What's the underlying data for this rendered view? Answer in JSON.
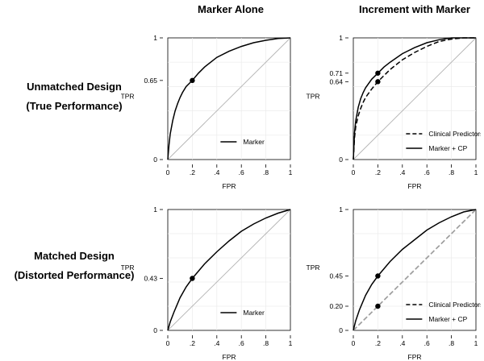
{
  "column_titles": [
    "Marker Alone",
    "Increment with Marker"
  ],
  "row_titles": [
    {
      "line1": "Unmatched Design",
      "line2": "(True Performance)"
    },
    {
      "line1": "Matched Design",
      "line2": "(Distorted Performance)"
    }
  ],
  "colors": {
    "curve": "#000000",
    "diagonal": "#b4b4b4",
    "grid": "#ebebeb",
    "dashed_diag": "#a0a0a0"
  },
  "chart_data": [
    {
      "type": "line",
      "title": "",
      "xlabel": "FPR",
      "ylabel": "TPR",
      "xlim": [
        0,
        1
      ],
      "ylim": [
        0,
        1
      ],
      "x_ticks": [
        "0",
        ".2",
        ".4",
        ".6",
        ".8",
        "1"
      ],
      "y_ticks": [
        {
          "value": 0,
          "label": "0"
        },
        {
          "value": 0.65,
          "label": "0.65"
        },
        {
          "value": 1,
          "label": "1"
        }
      ],
      "series": [
        {
          "name": "Marker",
          "style": "solid",
          "x": [
            0,
            0.01,
            0.02,
            0.04,
            0.06,
            0.08,
            0.1,
            0.12,
            0.15,
            0.2,
            0.25,
            0.3,
            0.4,
            0.5,
            0.6,
            0.7,
            0.8,
            0.9,
            1.0
          ],
          "y": [
            0,
            0.12,
            0.21,
            0.32,
            0.4,
            0.46,
            0.51,
            0.55,
            0.6,
            0.65,
            0.71,
            0.76,
            0.84,
            0.89,
            0.93,
            0.96,
            0.98,
            0.995,
            1.0
          ]
        }
      ],
      "points": [
        {
          "x": 0.2,
          "y": 0.65
        }
      ],
      "legend": {
        "placement": "bottom-right",
        "items": [
          {
            "label": "Marker",
            "style": "solid"
          }
        ]
      }
    },
    {
      "type": "line",
      "title": "",
      "xlabel": "FPR",
      "ylabel": "TPR",
      "xlim": [
        0,
        1
      ],
      "ylim": [
        0,
        1
      ],
      "x_ticks": [
        "0",
        ".2",
        ".4",
        ".6",
        ".8",
        "1"
      ],
      "y_ticks": [
        {
          "value": 0,
          "label": "0"
        },
        {
          "value": 0.64,
          "label": "0.64"
        },
        {
          "value": 0.71,
          "label": "0.71"
        },
        {
          "value": 1,
          "label": "1"
        }
      ],
      "series": [
        {
          "name": "Clinical Predictors",
          "style": "dashed",
          "x": [
            0,
            0.01,
            0.02,
            0.04,
            0.06,
            0.08,
            0.1,
            0.15,
            0.2,
            0.25,
            0.3,
            0.4,
            0.5,
            0.6,
            0.7,
            0.8,
            0.9,
            1.0
          ],
          "y": [
            0,
            0.18,
            0.27,
            0.36,
            0.42,
            0.47,
            0.51,
            0.58,
            0.64,
            0.69,
            0.74,
            0.82,
            0.88,
            0.93,
            0.97,
            0.99,
            1.0,
            1.0
          ]
        },
        {
          "name": "Marker + CP",
          "style": "solid",
          "x": [
            0,
            0.01,
            0.02,
            0.04,
            0.06,
            0.08,
            0.1,
            0.15,
            0.2,
            0.25,
            0.3,
            0.4,
            0.5,
            0.6,
            0.7,
            0.8,
            0.9,
            1.0
          ],
          "y": [
            0,
            0.22,
            0.32,
            0.43,
            0.5,
            0.55,
            0.59,
            0.66,
            0.71,
            0.76,
            0.8,
            0.87,
            0.92,
            0.96,
            0.985,
            1.0,
            1.0,
            1.0
          ]
        }
      ],
      "points": [
        {
          "x": 0.2,
          "y": 0.71
        },
        {
          "x": 0.2,
          "y": 0.64
        }
      ],
      "legend": {
        "placement": "bottom-right",
        "items": [
          {
            "label": "Clinical Predictors",
            "style": "dashed"
          },
          {
            "label": "Marker + CP",
            "style": "solid"
          }
        ]
      }
    },
    {
      "type": "line",
      "title": "",
      "xlabel": "FPR",
      "ylabel": "TPR",
      "xlim": [
        0,
        1
      ],
      "ylim": [
        0,
        1
      ],
      "x_ticks": [
        "0",
        ".2",
        ".4",
        ".6",
        ".8",
        "1"
      ],
      "y_ticks": [
        {
          "value": 0,
          "label": "0"
        },
        {
          "value": 0.43,
          "label": "0.43"
        },
        {
          "value": 1,
          "label": "1"
        }
      ],
      "series": [
        {
          "name": "Marker",
          "style": "solid",
          "x": [
            0,
            0.02,
            0.05,
            0.1,
            0.15,
            0.2,
            0.3,
            0.4,
            0.5,
            0.6,
            0.7,
            0.8,
            0.9,
            1.0
          ],
          "y": [
            0,
            0.07,
            0.15,
            0.27,
            0.36,
            0.43,
            0.55,
            0.65,
            0.74,
            0.82,
            0.88,
            0.93,
            0.97,
            1.0
          ]
        }
      ],
      "points": [
        {
          "x": 0.2,
          "y": 0.43
        }
      ],
      "legend": {
        "placement": "bottom-right",
        "items": [
          {
            "label": "Marker",
            "style": "solid"
          }
        ]
      }
    },
    {
      "type": "line",
      "title": "",
      "xlabel": "FPR",
      "ylabel": "TPR",
      "xlim": [
        0,
        1
      ],
      "ylim": [
        0,
        1
      ],
      "x_ticks": [
        "0",
        ".2",
        ".4",
        ".6",
        ".8",
        "1"
      ],
      "y_ticks": [
        {
          "value": 0,
          "label": "0"
        },
        {
          "value": 0.2,
          "label": "0.20"
        },
        {
          "value": 0.45,
          "label": "0.45"
        },
        {
          "value": 1,
          "label": "1"
        }
      ],
      "series": [
        {
          "name": "Clinical Predictors",
          "style": "dashed",
          "x": [
            0,
            1
          ],
          "y": [
            0,
            1
          ]
        },
        {
          "name": "Marker + CP",
          "style": "solid",
          "x": [
            0,
            0.02,
            0.05,
            0.1,
            0.15,
            0.2,
            0.3,
            0.4,
            0.5,
            0.6,
            0.7,
            0.8,
            0.9,
            1.0
          ],
          "y": [
            0,
            0.08,
            0.17,
            0.29,
            0.38,
            0.45,
            0.57,
            0.67,
            0.75,
            0.83,
            0.89,
            0.94,
            0.98,
            1.0
          ]
        }
      ],
      "points": [
        {
          "x": 0.2,
          "y": 0.45
        },
        {
          "x": 0.2,
          "y": 0.2
        }
      ],
      "legend": {
        "placement": "bottom-right",
        "items": [
          {
            "label": "Clinical Predictors",
            "style": "dashed"
          },
          {
            "label": "Marker + CP",
            "style": "solid"
          }
        ]
      }
    }
  ]
}
